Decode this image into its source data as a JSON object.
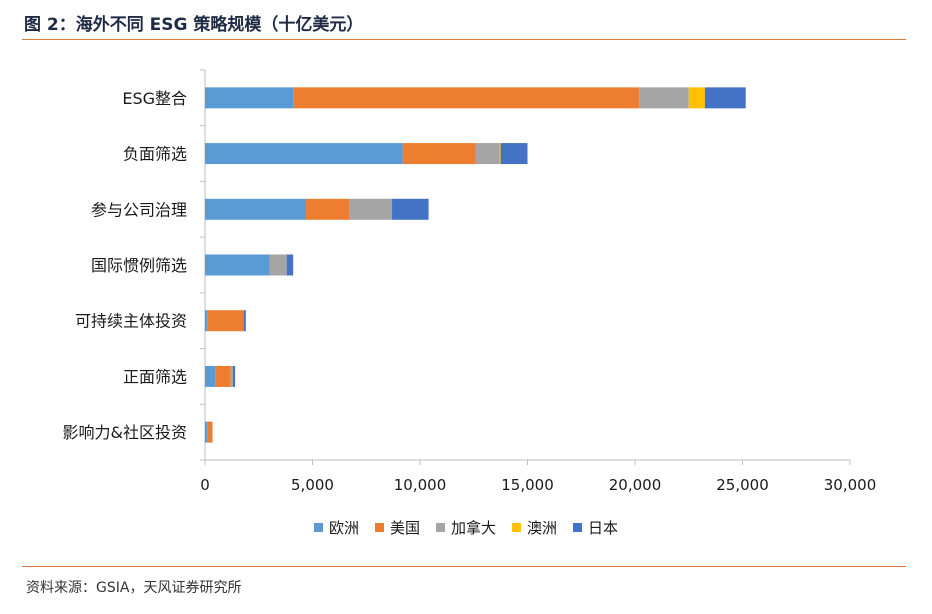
{
  "header": {
    "title": "图 2：海外不同 ESG 策略规模（十亿美元）"
  },
  "footer": {
    "source": "资料来源：GSIA，天风证券研究所"
  },
  "colors": {
    "rule": "#e07b39",
    "axis": "#bfbfbf"
  },
  "chart_data": {
    "type": "bar",
    "orientation": "horizontal",
    "stacked": true,
    "title": "",
    "xlabel": "",
    "ylabel": "",
    "xlim": [
      0,
      30000
    ],
    "xticks": [
      0,
      5000,
      10000,
      15000,
      20000,
      25000,
      30000
    ],
    "xtick_labels": [
      "0",
      "5,000",
      "10,000",
      "15,000",
      "20,000",
      "25,000",
      "30,000"
    ],
    "grid": false,
    "legend_position": "bottom",
    "categories": [
      "ESG整合",
      "负面筛选",
      "参与公司治理",
      "国际惯例筛选",
      "可持续主体投资",
      "正面筛选",
      "影响力&社区投资"
    ],
    "series": [
      {
        "name": "欧洲",
        "color": "#5b9bd5",
        "values": [
          4100,
          9200,
          4700,
          3000,
          100,
          500,
          100
        ]
      },
      {
        "name": "美国",
        "color": "#ed7d31",
        "values": [
          16100,
          3400,
          2000,
          0,
          1700,
          700,
          250
        ]
      },
      {
        "name": "加拿大",
        "color": "#a5a5a5",
        "values": [
          2300,
          1100,
          2000,
          800,
          0,
          100,
          0
        ]
      },
      {
        "name": "澳洲",
        "color": "#ffc000",
        "values": [
          750,
          50,
          0,
          0,
          0,
          0,
          0
        ]
      },
      {
        "name": "日本",
        "color": "#4472c4",
        "values": [
          1900,
          1250,
          1700,
          300,
          100,
          100,
          0
        ]
      }
    ]
  }
}
